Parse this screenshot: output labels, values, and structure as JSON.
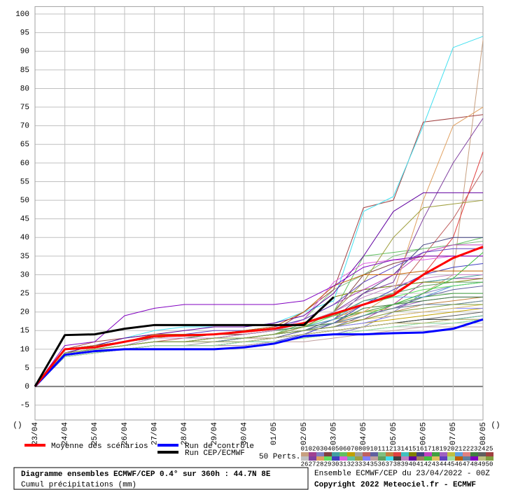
{
  "chart_data": {
    "type": "line",
    "title": "Diagramme ensembles ECMWF/CEP 0.4° sur 360h : 44.7N 8E",
    "subtitle": "Cumul précipitations (mm)",
    "run_info": "Ensemble ECMWF/CEP du 23/04/2022 - 00Z",
    "copyright": "Copyright 2022 Meteociel.fr - ECMWF",
    "members_label": "50 Perts.",
    "corner_marks": [
      "()",
      "()"
    ],
    "categories": [
      "23/04",
      "24/04",
      "25/04",
      "26/04",
      "27/04",
      "28/04",
      "29/04",
      "30/04",
      "01/05",
      "02/05",
      "03/05",
      "04/05",
      "05/05",
      "06/05",
      "07/05",
      "08/05"
    ],
    "ylim": [
      -9,
      102
    ],
    "yticks": [
      -5,
      0,
      5,
      10,
      15,
      20,
      25,
      30,
      35,
      40,
      45,
      50,
      55,
      60,
      65,
      70,
      75,
      80,
      85,
      90,
      95,
      100
    ],
    "grid": true,
    "series": [
      {
        "name": "Moyenne des scénarios",
        "color": "#ff0000",
        "values": [
          0,
          10,
          10.5,
          12,
          13.5,
          13.7,
          14,
          14.7,
          15.5,
          17,
          19.5,
          22,
          24.5,
          30,
          34.5,
          37.5
        ]
      },
      {
        "name": "Run de contrôle",
        "color": "#0000ff",
        "values": [
          0,
          8.5,
          9.5,
          10,
          10,
          10,
          10,
          10.5,
          11.5,
          13.5,
          14,
          14,
          14.3,
          14.5,
          15.5,
          18
        ]
      },
      {
        "name": "Run CEP/ECMWF",
        "color": "#000000",
        "values": [
          0,
          13.8,
          14,
          15.5,
          16.5,
          16.5,
          16.5,
          16.5,
          16.5,
          16.5,
          24,
          null,
          null,
          null,
          null,
          null
        ]
      }
    ],
    "members": [
      {
        "name": "01",
        "color": "#c8a080",
        "values": [
          0,
          9,
          10,
          11,
          12,
          12,
          12,
          12,
          13,
          14,
          17,
          20,
          22,
          25,
          30,
          93
        ]
      },
      {
        "name": "02",
        "color": "#a04090",
        "values": [
          0,
          9,
          10,
          11,
          12,
          12,
          13,
          13,
          14,
          15,
          16,
          18,
          22,
          28,
          29,
          29
        ]
      },
      {
        "name": "03",
        "color": "#8080c0",
        "values": [
          0,
          8,
          9,
          10,
          11,
          11,
          11,
          12,
          12,
          13,
          14,
          16,
          20,
          25,
          27,
          28
        ]
      },
      {
        "name": "04",
        "color": "#804040",
        "values": [
          0,
          10,
          11,
          12,
          13,
          13,
          13,
          13,
          14,
          16,
          20,
          30,
          33,
          35,
          35,
          35
        ]
      },
      {
        "name": "05",
        "color": "#40a0a0",
        "values": [
          0,
          9,
          10,
          11,
          13,
          14,
          14,
          15,
          16,
          18,
          22,
          26,
          27,
          28,
          29,
          30
        ]
      },
      {
        "name": "06",
        "color": "#60c060",
        "values": [
          0,
          9,
          10,
          11,
          12,
          12,
          12,
          13,
          14,
          17,
          20,
          35,
          36,
          37,
          38,
          40
        ]
      },
      {
        "name": "07",
        "color": "#c0a000",
        "values": [
          0,
          10,
          11,
          12,
          13,
          13,
          13,
          13,
          14,
          15,
          16,
          17,
          18,
          19,
          20,
          21
        ]
      },
      {
        "name": "08",
        "color": "#a0a0a0",
        "values": [
          0,
          8,
          9,
          10,
          11,
          11,
          12,
          12,
          13,
          14,
          15,
          16,
          17,
          18,
          18,
          19
        ]
      },
      {
        "name": "09",
        "color": "#c06060",
        "values": [
          0,
          9,
          10,
          11,
          12,
          13,
          13,
          13,
          14,
          16,
          18,
          22,
          25,
          35,
          45,
          58
        ]
      },
      {
        "name": "10",
        "color": "#6060a0",
        "values": [
          0,
          9,
          10,
          11,
          12,
          12,
          12,
          13,
          14,
          15,
          16,
          19,
          21,
          24,
          26,
          27
        ]
      },
      {
        "name": "11",
        "color": "#80c080",
        "values": [
          0,
          10,
          11,
          12,
          13,
          14,
          14,
          14,
          15,
          18,
          26,
          30,
          35,
          37,
          38,
          39
        ]
      },
      {
        "name": "12",
        "color": "#c08040",
        "values": [
          0,
          9,
          10,
          11,
          12,
          12,
          12,
          13,
          14,
          15,
          17,
          18,
          20,
          22,
          23,
          24
        ]
      },
      {
        "name": "13",
        "color": "#e04040",
        "values": [
          0,
          10,
          11,
          12,
          13,
          14,
          14,
          14,
          15,
          17,
          19,
          22,
          25,
          30,
          40,
          63
        ]
      },
      {
        "name": "14",
        "color": "#40c0c0",
        "values": [
          0,
          8,
          9,
          10,
          11,
          11,
          11,
          12,
          12,
          13,
          14,
          15,
          16,
          17,
          17,
          18
        ]
      },
      {
        "name": "15",
        "color": "#808000",
        "values": [
          0,
          9,
          10,
          11,
          12,
          12,
          13,
          13,
          14,
          16,
          24,
          26,
          27,
          28,
          28,
          29
        ]
      },
      {
        "name": "16",
        "color": "#404080",
        "values": [
          0,
          8,
          9,
          10,
          11,
          11,
          11,
          12,
          13,
          15,
          18,
          25,
          30,
          38,
          40,
          40
        ]
      },
      {
        "name": "17",
        "color": "#c040c0",
        "values": [
          0,
          9,
          11,
          12,
          13,
          13,
          14,
          14,
          15,
          18,
          22,
          26,
          30,
          36,
          38,
          38
        ]
      },
      {
        "name": "18",
        "color": "#40a040",
        "values": [
          0,
          10,
          11,
          12,
          13,
          13,
          13,
          14,
          15,
          16,
          18,
          20,
          22,
          24,
          25,
          25
        ]
      },
      {
        "name": "19",
        "color": "#a060c0",
        "values": [
          0,
          9,
          10,
          11,
          12,
          12,
          13,
          13,
          14,
          15,
          17,
          19,
          21,
          23,
          24,
          24
        ]
      },
      {
        "name": "20",
        "color": "#c0c040",
        "values": [
          0,
          10,
          11,
          12,
          13,
          14,
          14,
          14,
          15,
          17,
          19,
          20,
          21,
          22,
          22,
          23
        ]
      },
      {
        "name": "21",
        "color": "#60a0e0",
        "values": [
          0,
          9,
          10,
          11,
          12,
          12,
          12,
          13,
          14,
          16,
          18,
          23,
          24,
          24,
          27,
          28
        ]
      },
      {
        "name": "22",
        "color": "#e08080",
        "values": [
          0,
          9,
          10,
          11,
          12,
          12,
          12,
          13,
          13,
          14,
          15,
          16,
          17,
          18,
          18,
          19
        ]
      },
      {
        "name": "23",
        "color": "#408040",
        "values": [
          0,
          10,
          11,
          12,
          13,
          13,
          14,
          14,
          15,
          16,
          17,
          21,
          22,
          23,
          24,
          24
        ]
      },
      {
        "name": "24",
        "color": "#606060",
        "values": [
          0,
          9,
          10,
          11,
          12,
          12,
          12,
          12,
          13,
          14,
          15,
          16,
          17,
          18,
          19,
          20
        ]
      },
      {
        "name": "25",
        "color": "#a04040",
        "values": [
          0,
          10,
          12,
          13,
          14,
          14,
          14,
          14,
          15,
          20,
          26,
          48,
          50,
          71,
          72,
          73
        ]
      },
      {
        "name": "26",
        "color": "#c0c0c0",
        "values": [
          0,
          8,
          9,
          10,
          11,
          11,
          11,
          11,
          12,
          13,
          14,
          15,
          16,
          16,
          17,
          17
        ]
      },
      {
        "name": "27",
        "color": "#8040a0",
        "values": [
          0,
          9,
          10,
          11,
          12,
          12,
          12,
          13,
          14,
          16,
          20,
          25,
          28,
          45,
          60,
          72
        ]
      },
      {
        "name": "28",
        "color": "#e0a060",
        "values": [
          0,
          9,
          10,
          11,
          12,
          12,
          12,
          13,
          14,
          15,
          17,
          20,
          25,
          50,
          70,
          75
        ]
      },
      {
        "name": "29",
        "color": "#60e060",
        "values": [
          0,
          9,
          10,
          11,
          12,
          12,
          12,
          13,
          14,
          16,
          19,
          22,
          24,
          26,
          27,
          28
        ]
      },
      {
        "name": "30",
        "color": "#4040c0",
        "values": [
          0,
          8,
          9,
          10,
          11,
          11,
          11,
          11,
          12,
          14,
          17,
          22,
          26,
          30,
          32,
          33
        ]
      },
      {
        "name": "31",
        "color": "#e060e0",
        "values": [
          0,
          10,
          11,
          12,
          13,
          13,
          13,
          14,
          15,
          18,
          28,
          33,
          34,
          34,
          35,
          35
        ]
      },
      {
        "name": "32",
        "color": "#60c0a0",
        "values": [
          0,
          9,
          10,
          11,
          12,
          12,
          12,
          12,
          13,
          14,
          15,
          16,
          17,
          18,
          18,
          19
        ]
      },
      {
        "name": "33",
        "color": "#a0a040",
        "values": [
          0,
          9,
          10,
          11,
          12,
          12,
          13,
          13,
          14,
          16,
          20,
          28,
          40,
          48,
          49,
          50
        ]
      },
      {
        "name": "34",
        "color": "#8080ff",
        "values": [
          0,
          9,
          10,
          11,
          12,
          12,
          12,
          13,
          14,
          15,
          16,
          17,
          19,
          20,
          21,
          21
        ]
      },
      {
        "name": "35",
        "color": "#c0a0a0",
        "values": [
          0,
          8,
          9,
          10,
          11,
          11,
          11,
          11,
          12,
          12,
          13,
          14,
          15,
          16,
          16,
          16
        ]
      },
      {
        "name": "36",
        "color": "#60a060",
        "values": [
          0,
          9,
          11,
          12,
          13,
          13,
          13,
          14,
          15,
          17,
          19,
          23,
          25,
          27,
          28,
          28
        ]
      },
      {
        "name": "37",
        "color": "#40e0f0",
        "values": [
          0,
          10,
          11,
          13,
          15,
          16,
          16,
          16,
          17,
          20,
          23,
          47,
          51,
          70,
          91,
          94
        ]
      },
      {
        "name": "38",
        "color": "#404040",
        "values": [
          0,
          9,
          10,
          11,
          12,
          12,
          12,
          13,
          13,
          14,
          15,
          16,
          17,
          18,
          18,
          18
        ]
      },
      {
        "name": "39",
        "color": "#c080c0",
        "values": [
          0,
          9,
          10,
          11,
          13,
          13,
          13,
          14,
          15,
          17,
          20,
          24,
          27,
          29,
          30,
          30
        ]
      },
      {
        "name": "40",
        "color": "#6000a0",
        "values": [
          0,
          9,
          11,
          13,
          14,
          15,
          16,
          16,
          17,
          19,
          25,
          35,
          47,
          52,
          52,
          52
        ]
      },
      {
        "name": "41",
        "color": "#a08060",
        "values": [
          0,
          9,
          10,
          11,
          12,
          12,
          12,
          13,
          13,
          14,
          15,
          16,
          17,
          17,
          18,
          18
        ]
      },
      {
        "name": "42",
        "color": "#40c040",
        "values": [
          0,
          9,
          10,
          11,
          12,
          12,
          12,
          13,
          14,
          15,
          17,
          19,
          22,
          25,
          29,
          36
        ]
      },
      {
        "name": "43",
        "color": "#e0c060",
        "values": [
          0,
          9,
          10,
          11,
          12,
          12,
          12,
          13,
          14,
          15,
          16,
          18,
          19,
          20,
          21,
          22
        ]
      },
      {
        "name": "44",
        "color": "#6040c0",
        "values": [
          0,
          10,
          11,
          12,
          14,
          14,
          15,
          15,
          16,
          18,
          22,
          28,
          32,
          36,
          37,
          37
        ]
      },
      {
        "name": "45",
        "color": "#a0e0a0",
        "values": [
          0,
          8,
          9,
          10,
          11,
          11,
          11,
          12,
          12,
          13,
          14,
          15,
          16,
          17,
          17,
          18
        ]
      },
      {
        "name": "46",
        "color": "#c06000",
        "values": [
          0,
          10,
          11,
          12,
          14,
          14,
          14,
          15,
          16,
          20,
          27,
          30,
          30,
          31,
          31,
          31
        ]
      },
      {
        "name": "47",
        "color": "#6080a0",
        "values": [
          0,
          9,
          10,
          11,
          12,
          12,
          12,
          13,
          14,
          15,
          17,
          19,
          21,
          22,
          22,
          23
        ]
      },
      {
        "name": "48",
        "color": "#8000c0",
        "values": [
          0,
          11,
          12,
          19,
          21,
          22,
          22,
          22,
          22,
          23,
          27,
          32,
          34,
          35,
          35,
          35
        ]
      },
      {
        "name": "49",
        "color": "#c0c080",
        "values": [
          0,
          9,
          10,
          11,
          12,
          12,
          12,
          12,
          13,
          14,
          15,
          16,
          17,
          17,
          18,
          18
        ]
      },
      {
        "name": "50",
        "color": "#80a040",
        "values": [
          0,
          9,
          10,
          11,
          12,
          12,
          13,
          13,
          14,
          15,
          16,
          18,
          20,
          21,
          22,
          22
        ]
      }
    ]
  }
}
